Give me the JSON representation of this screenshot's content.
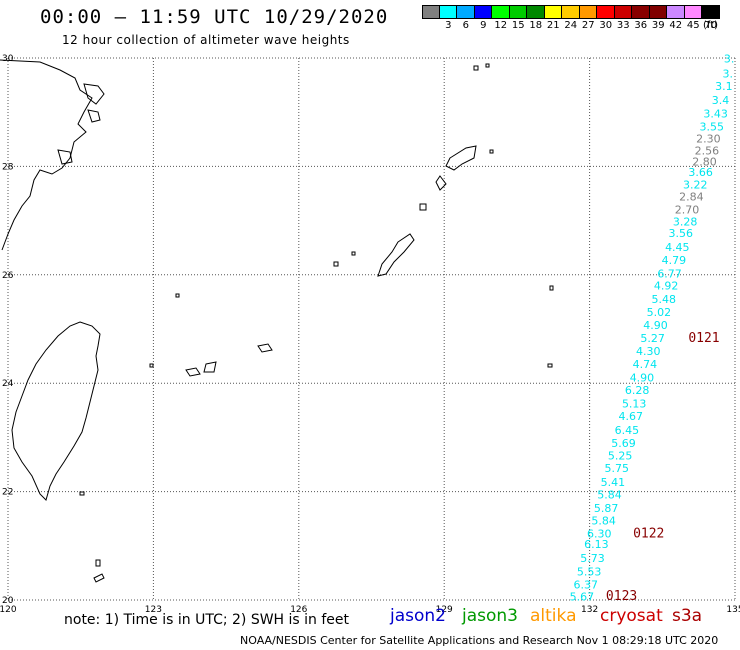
{
  "header": {
    "title": "00:00 – 11:59 UTC 10/29/2020",
    "subtitle": "12 hour collection of altimeter wave heights"
  },
  "legend": {
    "unit": "(ft)",
    "items": [
      {
        "label": "",
        "color": "#808080"
      },
      {
        "label": "3",
        "color": "#00ffff"
      },
      {
        "label": "6",
        "color": "#00aaff"
      },
      {
        "label": "9",
        "color": "#0000ff"
      },
      {
        "label": "12",
        "color": "#00ff00"
      },
      {
        "label": "15",
        "color": "#00cc00"
      },
      {
        "label": "18",
        "color": "#008800"
      },
      {
        "label": "21",
        "color": "#ffff00"
      },
      {
        "label": "24",
        "color": "#ffcc00"
      },
      {
        "label": "27",
        "color": "#ff9900"
      },
      {
        "label": "30",
        "color": "#ff0000"
      },
      {
        "label": "33",
        "color": "#cc0000"
      },
      {
        "label": "36",
        "color": "#880000"
      },
      {
        "label": "39",
        "color": "#800000"
      },
      {
        "label": "42",
        "color": "#cc88ff"
      },
      {
        "label": "45",
        "color": "#ff88ff"
      },
      {
        "label": "70",
        "color": "#000000"
      }
    ]
  },
  "map": {
    "lon_range": [
      120,
      135
    ],
    "lat_range": [
      20,
      30
    ],
    "lon_ticks": [
      "120",
      "123",
      "126",
      "129",
      "132",
      "135"
    ],
    "lat_ticks": [
      "30",
      "28",
      "26",
      "24",
      "22",
      "20"
    ],
    "swh_points": [
      {
        "label": "3.",
        "lon": 134.88,
        "lat": 29.92,
        "color": "#00e5ee"
      },
      {
        "label": "3.",
        "lon": 134.85,
        "lat": 29.64,
        "color": "#00e5ee"
      },
      {
        "label": "3.1",
        "lon": 134.77,
        "lat": 29.41,
        "color": "#00e5ee"
      },
      {
        "label": "3.4",
        "lon": 134.7,
        "lat": 29.15,
        "color": "#00e5ee"
      },
      {
        "label": "3.43",
        "lon": 134.6,
        "lat": 28.9,
        "color": "#00e5ee"
      },
      {
        "label": "3.55",
        "lon": 134.52,
        "lat": 28.66,
        "color": "#00e5ee"
      },
      {
        "label": "2.30",
        "lon": 134.45,
        "lat": 28.44,
        "color": "#808080"
      },
      {
        "label": "2.56",
        "lon": 134.42,
        "lat": 28.22,
        "color": "#808080"
      },
      {
        "label": "2.80",
        "lon": 134.37,
        "lat": 28.02,
        "color": "#808080"
      },
      {
        "label": "3.66",
        "lon": 134.29,
        "lat": 27.82,
        "color": "#00e5ee"
      },
      {
        "label": "3.22",
        "lon": 134.18,
        "lat": 27.59,
        "color": "#00e5ee"
      },
      {
        "label": "2.84",
        "lon": 134.1,
        "lat": 27.37,
        "color": "#808080"
      },
      {
        "label": "2.70",
        "lon": 134.01,
        "lat": 27.13,
        "color": "#808080"
      },
      {
        "label": "3.28",
        "lon": 133.97,
        "lat": 26.91,
        "color": "#00e5ee"
      },
      {
        "label": "3.56",
        "lon": 133.88,
        "lat": 26.7,
        "color": "#00e5ee"
      },
      {
        "label": "4.45",
        "lon": 133.81,
        "lat": 26.44,
        "color": "#00e5ee"
      },
      {
        "label": "4.79",
        "lon": 133.74,
        "lat": 26.2,
        "color": "#00e5ee"
      },
      {
        "label": "6.77",
        "lon": 133.65,
        "lat": 25.95,
        "color": "#00e5ee"
      },
      {
        "label": "4.92",
        "lon": 133.58,
        "lat": 25.73,
        "color": "#00e5ee"
      },
      {
        "label": "5.48",
        "lon": 133.53,
        "lat": 25.48,
        "color": "#00e5ee"
      },
      {
        "label": "5.02",
        "lon": 133.43,
        "lat": 25.24,
        "color": "#00e5ee"
      },
      {
        "label": "4.90",
        "lon": 133.36,
        "lat": 25.0,
        "color": "#00e5ee"
      },
      {
        "label": "5.27",
        "lon": 133.3,
        "lat": 24.76,
        "color": "#00e5ee"
      },
      {
        "label": "4.30",
        "lon": 133.21,
        "lat": 24.52,
        "color": "#00e5ee"
      },
      {
        "label": "4.74",
        "lon": 133.14,
        "lat": 24.28,
        "color": "#00e5ee"
      },
      {
        "label": "4.90",
        "lon": 133.08,
        "lat": 24.03,
        "color": "#00e5ee"
      },
      {
        "label": "6.28",
        "lon": 132.98,
        "lat": 23.8,
        "color": "#00e5ee"
      },
      {
        "label": "5.13",
        "lon": 132.92,
        "lat": 23.55,
        "color": "#00e5ee"
      },
      {
        "label": "4.67",
        "lon": 132.85,
        "lat": 23.32,
        "color": "#00e5ee"
      },
      {
        "label": "6.45",
        "lon": 132.77,
        "lat": 23.06,
        "color": "#00e5ee"
      },
      {
        "label": "5.69",
        "lon": 132.7,
        "lat": 22.82,
        "color": "#00e5ee"
      },
      {
        "label": "5.25",
        "lon": 132.63,
        "lat": 22.59,
        "color": "#00e5ee"
      },
      {
        "label": "5.75",
        "lon": 132.56,
        "lat": 22.36,
        "color": "#00e5ee"
      },
      {
        "label": "5.41",
        "lon": 132.48,
        "lat": 22.1,
        "color": "#00e5ee"
      },
      {
        "label": "5.84",
        "lon": 132.41,
        "lat": 21.87,
        "color": "#00e5ee"
      },
      {
        "label": "5.87",
        "lon": 132.34,
        "lat": 21.62,
        "color": "#00e5ee"
      },
      {
        "label": "5.84",
        "lon": 132.29,
        "lat": 21.39,
        "color": "#00e5ee"
      },
      {
        "label": "6.30",
        "lon": 132.2,
        "lat": 21.15,
        "color": "#00e5ee"
      },
      {
        "label": "6.13",
        "lon": 132.14,
        "lat": 20.96,
        "color": "#00e5ee"
      },
      {
        "label": "5.73",
        "lon": 132.06,
        "lat": 20.7,
        "color": "#00e5ee"
      },
      {
        "label": "5.53",
        "lon": 131.99,
        "lat": 20.45,
        "color": "#00e5ee"
      },
      {
        "label": "6.37",
        "lon": 131.92,
        "lat": 20.21,
        "color": "#00e5ee"
      },
      {
        "label": "5.67",
        "lon": 131.84,
        "lat": 19.99,
        "color": "#00e5ee"
      }
    ],
    "time_stamps": [
      {
        "label": "0121",
        "lon": 134.36,
        "lat": 24.76,
        "color": "#880000"
      },
      {
        "label": "0122",
        "lon": 133.22,
        "lat": 21.15,
        "color": "#880000"
      },
      {
        "label": "0123",
        "lon": 132.66,
        "lat": 20.0,
        "color": "#880000"
      }
    ]
  },
  "note": "note: 1) Time is in UTC; 2) SWH is in feet",
  "satellites": [
    {
      "label": "jason2",
      "color": "#0000cc"
    },
    {
      "label": "jason3",
      "color": "#009900"
    },
    {
      "label": "altika",
      "color": "#ff9900"
    },
    {
      "label": "cryosat",
      "color": "#cc0000"
    },
    {
      "label": "s3a",
      "color": "#aa0000"
    }
  ],
  "footer": "NOAA/NESDIS Center for Satellite Applications and Research    Nov  1 08:29:18 UTC 2020"
}
